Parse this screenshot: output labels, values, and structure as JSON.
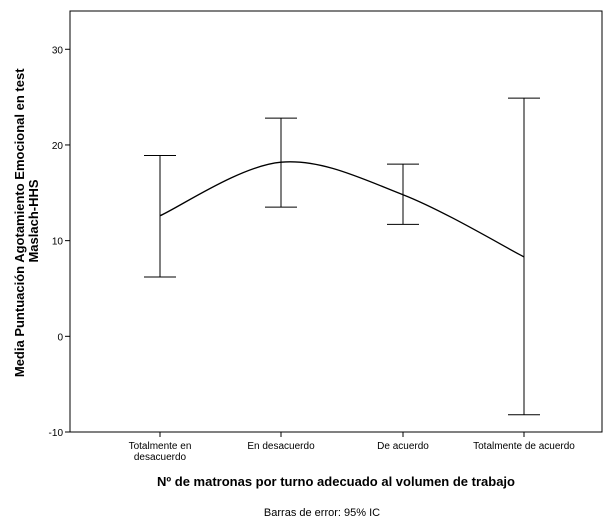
{
  "chart_data": {
    "type": "line",
    "title": "",
    "xlabel": "Nº de matronas por turno adecuado al volumen de trabajo",
    "ylabel_lines": [
      "Media Puntuación Agotamiento Emocional en test",
      "Maslach-HHS"
    ],
    "categories": [
      [
        "Totalmente en",
        "desacuerdo"
      ],
      [
        "En desacuerdo"
      ],
      [
        "De acuerdo"
      ],
      [
        "Totalmente de acuerdo"
      ]
    ],
    "series": [
      {
        "values": [
          12.6,
          18.2,
          14.8,
          8.3
        ],
        "error_low": [
          6.2,
          13.5,
          11.7,
          -8.2
        ],
        "error_high": [
          18.9,
          22.8,
          18.0,
          24.9
        ]
      }
    ],
    "ylim": [
      -10,
      34
    ],
    "yticks": [
      -10,
      0,
      10,
      20,
      30
    ],
    "grid": false,
    "footnote": "Barras de error: 95% IC"
  }
}
